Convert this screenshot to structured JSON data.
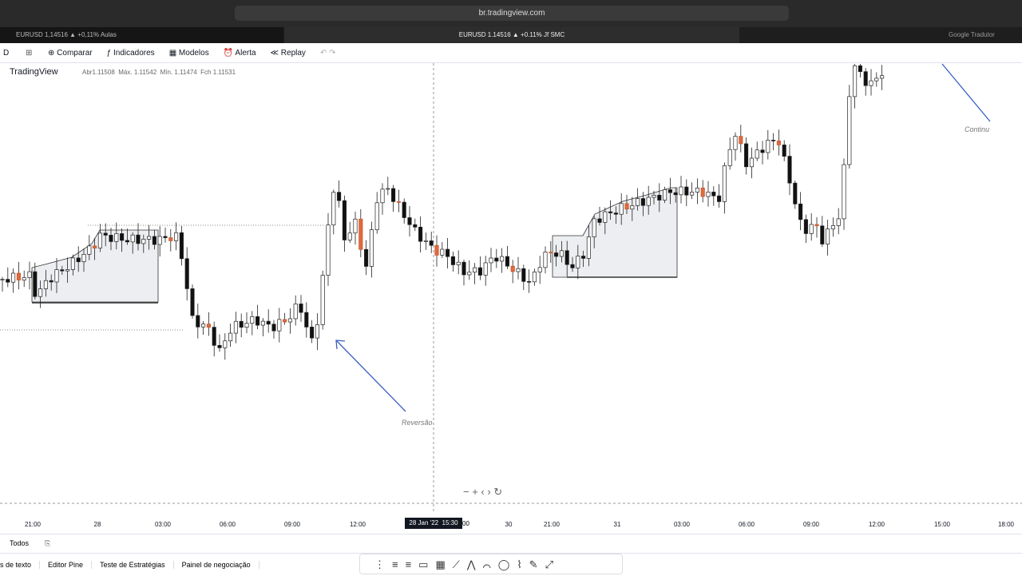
{
  "browser": {
    "url": "br.tradingview.com",
    "tabs": [
      "EURUSD 1,14516 ▲ +0,11% Aulas",
      "EURUSD 1.14516 ▲ +0.11% Jf SMC",
      "Google Tradutor"
    ]
  },
  "toolbar": {
    "interval": "D",
    "items": [
      "Comparar",
      "Indicadores",
      "Modelos",
      "Alerta",
      "Replay"
    ]
  },
  "legend": {
    "source": "TradingView",
    "open_label": "Abr",
    "open": "1.11508",
    "high_label": "Máx.",
    "high": "1.11542",
    "low_label": "Mín.",
    "low": "1.11474",
    "close_label": "Fch",
    "close": "1.11531"
  },
  "annotations": [
    "Reversão",
    "Continu"
  ],
  "time_axis": [
    "21:00",
    "28",
    "03:00",
    "06:00",
    "09:00",
    "12:00",
    "30",
    "21:00",
    "31",
    "03:00",
    "06:00",
    "09:00",
    "12:00",
    "15:00",
    "18:00"
  ],
  "crosshair": {
    "date": "28 Jan '22",
    "time": "15:30",
    "tail": "00"
  },
  "bottom_bar": {
    "range": "Todos",
    "tabs": [
      "s de texto",
      "Editor Pine",
      "Teste de Estratégias",
      "Painel de negociação"
    ]
  }
}
